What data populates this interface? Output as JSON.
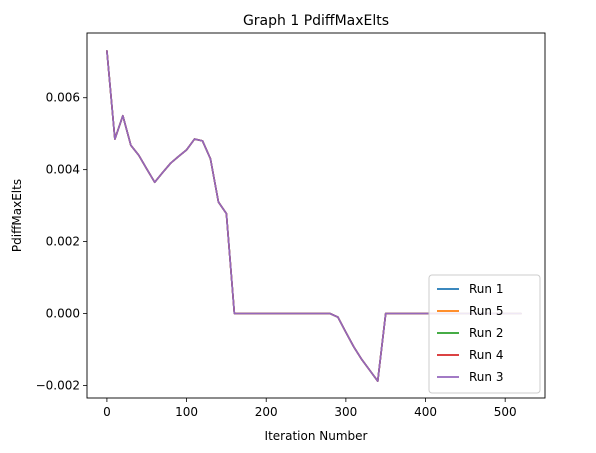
{
  "chart_data": {
    "type": "line",
    "title": "Graph 1 PdiffMaxElts",
    "xlabel": "Iteration Number",
    "ylabel": "PdiffMaxElts",
    "xlim": [
      -25,
      550
    ],
    "ylim": [
      -0.00235,
      0.0078
    ],
    "xticks": [
      0,
      100,
      200,
      300,
      400,
      500
    ],
    "xtick_labels": [
      "0",
      "100",
      "200",
      "300",
      "400",
      "500"
    ],
    "yticks": [
      -0.002,
      0.0,
      0.002,
      0.004,
      0.006
    ],
    "ytick_labels": [
      "−0.002",
      "0.000",
      "0.002",
      "0.004",
      "0.006"
    ],
    "grid": false,
    "legend_position": "lower-right",
    "x": [
      0,
      10,
      20,
      30,
      40,
      50,
      60,
      70,
      80,
      90,
      100,
      110,
      120,
      130,
      140,
      150,
      160,
      170,
      180,
      190,
      200,
      210,
      220,
      230,
      240,
      250,
      260,
      270,
      280,
      290,
      300,
      310,
      320,
      330,
      340,
      350,
      360,
      370,
      380,
      390,
      400,
      410,
      420,
      430,
      440,
      450,
      460,
      470,
      480,
      490,
      500,
      510,
      520
    ],
    "series": [
      {
        "name": "Run 1",
        "color": "#1f77b4",
        "values": [
          0.0073,
          0.00485,
          0.0055,
          0.00468,
          0.0044,
          0.00402,
          0.00365,
          0.00392,
          0.00418,
          0.00437,
          0.00455,
          0.00485,
          0.0048,
          0.0043,
          0.0031,
          0.00278,
          0.0,
          0.0,
          0.0,
          0.0,
          0.0,
          0.0,
          0.0,
          0.0,
          0.0,
          0.0,
          0.0,
          0.0,
          0.0,
          -0.0001,
          -0.00052,
          -0.00093,
          -0.00128,
          -0.00158,
          -0.00188,
          0.0,
          0.0,
          0.0,
          0.0,
          0.0,
          0.0,
          0.0,
          0.0,
          0.0,
          0.0,
          0.0,
          0.0,
          0.0,
          0.0,
          0.0,
          0.0,
          0.0,
          0.0
        ]
      },
      {
        "name": "Run 5",
        "color": "#ff7f0e",
        "values": [
          0.0073,
          0.00485,
          0.0055,
          0.00468,
          0.0044,
          0.00402,
          0.00365,
          0.00392,
          0.00418,
          0.00437,
          0.00455,
          0.00485,
          0.0048,
          0.0043,
          0.0031,
          0.00278,
          0.0,
          0.0,
          0.0,
          0.0,
          0.0,
          0.0,
          0.0,
          0.0,
          0.0,
          0.0,
          0.0,
          0.0,
          0.0,
          -0.0001,
          -0.00052,
          -0.00093,
          -0.00128,
          -0.00158,
          -0.00188,
          0.0,
          0.0,
          0.0,
          0.0,
          0.0,
          0.0,
          0.0,
          0.0,
          0.0,
          0.0,
          0.0,
          0.0,
          0.0,
          0.0,
          0.0,
          0.0,
          0.0,
          0.0
        ]
      },
      {
        "name": "Run 2",
        "color": "#2ca02c",
        "values": [
          0.0073,
          0.00485,
          0.0055,
          0.00468,
          0.0044,
          0.00402,
          0.00365,
          0.00392,
          0.00418,
          0.00437,
          0.00455,
          0.00485,
          0.0048,
          0.0043,
          0.0031,
          0.00278,
          0.0,
          0.0,
          0.0,
          0.0,
          0.0,
          0.0,
          0.0,
          0.0,
          0.0,
          0.0,
          0.0,
          0.0,
          0.0,
          -0.0001,
          -0.00052,
          -0.00093,
          -0.00128,
          -0.00158,
          -0.00188,
          0.0,
          0.0,
          0.0,
          0.0,
          0.0,
          0.0,
          0.0,
          0.0,
          0.0,
          0.0,
          0.0,
          0.0,
          0.0,
          0.0,
          0.0,
          0.0,
          0.0,
          0.0
        ]
      },
      {
        "name": "Run 4",
        "color": "#d62728",
        "values": [
          0.0073,
          0.00485,
          0.0055,
          0.00468,
          0.0044,
          0.00402,
          0.00365,
          0.00392,
          0.00418,
          0.00437,
          0.00455,
          0.00485,
          0.0048,
          0.0043,
          0.0031,
          0.00278,
          0.0,
          0.0,
          0.0,
          0.0,
          0.0,
          0.0,
          0.0,
          0.0,
          0.0,
          0.0,
          0.0,
          0.0,
          0.0,
          -0.0001,
          -0.00052,
          -0.00093,
          -0.00128,
          -0.00158,
          -0.00188,
          0.0,
          0.0,
          0.0,
          0.0,
          0.0,
          0.0,
          0.0,
          0.0,
          0.0,
          0.0,
          0.0,
          0.0,
          0.0,
          0.0,
          0.0,
          0.0,
          0.0,
          0.0
        ]
      },
      {
        "name": "Run 3",
        "color": "#9467bd",
        "values": [
          0.0073,
          0.00485,
          0.0055,
          0.00468,
          0.0044,
          0.00402,
          0.00365,
          0.00392,
          0.00418,
          0.00437,
          0.00455,
          0.00485,
          0.0048,
          0.0043,
          0.0031,
          0.00278,
          0.0,
          0.0,
          0.0,
          0.0,
          0.0,
          0.0,
          0.0,
          0.0,
          0.0,
          0.0,
          0.0,
          0.0,
          0.0,
          -0.0001,
          -0.00052,
          -0.00093,
          -0.00128,
          -0.00158,
          -0.00188,
          0.0,
          0.0,
          0.0,
          0.0,
          0.0,
          0.0,
          0.0,
          0.0,
          0.0,
          0.0,
          0.0,
          0.0,
          0.0,
          0.0,
          0.0,
          0.0,
          0.0,
          0.0
        ]
      }
    ]
  }
}
